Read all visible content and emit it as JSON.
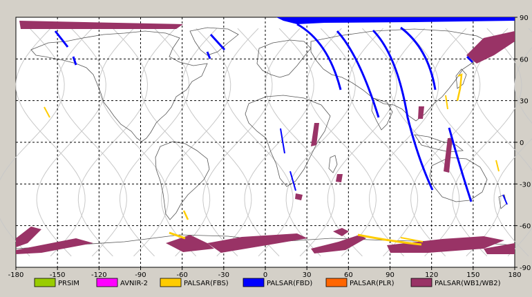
{
  "map": {
    "x_ticks": [
      "-180",
      "-150",
      "-120",
      "-90",
      "-60",
      "-30",
      "0",
      "30",
      "60",
      "90",
      "120",
      "150",
      "180"
    ],
    "y_ticks": [
      "90",
      "60",
      "30",
      "0",
      "-30",
      "-60",
      "-90"
    ],
    "x_range": [
      -180,
      180
    ],
    "y_range": [
      -90,
      90
    ],
    "grid": true
  },
  "legend": {
    "items": [
      {
        "label": "PRSIM",
        "color": "#99cc00"
      },
      {
        "label": "AVNIR-2",
        "color": "#ff00ff"
      },
      {
        "label": "PALSAR(FBS)",
        "color": "#ffcc00"
      },
      {
        "label": "PALSAR(FBD)",
        "color": "#0000ff"
      },
      {
        "label": "PALSAR(PLR)",
        "color": "#ff6600"
      },
      {
        "label": "PALSAR(WB1/WB2)",
        "color": "#993366"
      }
    ]
  },
  "colors": {
    "background": "#ffffff",
    "panel": "#d4d0c8",
    "coastline": "#555555",
    "orbit": "#c8c8c8",
    "grid": "#000000"
  }
}
